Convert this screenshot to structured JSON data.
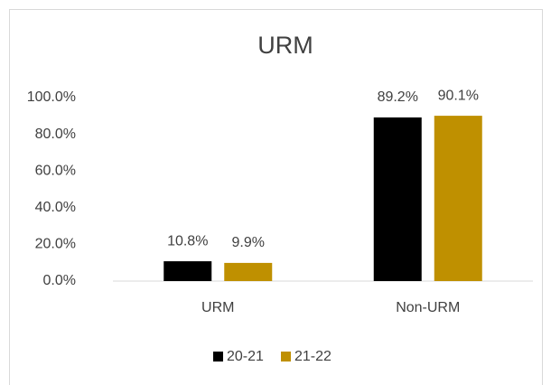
{
  "chart_data": {
    "type": "bar",
    "title": "URM",
    "categories": [
      "URM",
      "Non-URM"
    ],
    "series": [
      {
        "name": "20-21",
        "color": "#000000",
        "values": [
          10.8,
          89.2
        ],
        "value_labels": [
          "10.8%",
          "89.2%"
        ]
      },
      {
        "name": "21-22",
        "color": "#bf9000",
        "values": [
          9.9,
          90.1
        ],
        "value_labels": [
          "9.9%",
          "90.1%"
        ]
      }
    ],
    "ylim": [
      0,
      100
    ],
    "yticks": [
      {
        "value": 0,
        "label": "0.0%"
      },
      {
        "value": 20,
        "label": "20.0%"
      },
      {
        "value": 40,
        "label": "40.0%"
      },
      {
        "value": 60,
        "label": "60.0%"
      },
      {
        "value": 80,
        "label": "80.0%"
      },
      {
        "value": 100,
        "label": "100.0%"
      }
    ],
    "grid": false,
    "legend": "bottom"
  }
}
